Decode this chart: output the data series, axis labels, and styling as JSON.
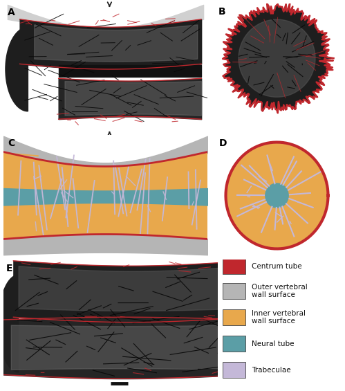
{
  "background_color": "#ffffff",
  "panel_labels": [
    "A",
    "B",
    "C",
    "D",
    "E"
  ],
  "legend_items": [
    {
      "label": "Centrum tube",
      "color": "#c0272d"
    },
    {
      "label": "Outer vertebral\nwall surface",
      "color": "#b5b5b5"
    },
    {
      "label": "Inner vertebral\nwall surface",
      "color": "#e8a84c"
    },
    {
      "label": "Neural tube",
      "color": "#5b9ea6"
    },
    {
      "label": "Trabeculae",
      "color": "#c4b8d8"
    }
  ],
  "fig_width": 4.99,
  "fig_height": 5.65,
  "dpi": 100,
  "panel_label_fontsize": 10,
  "legend_fontsize": 7.5
}
